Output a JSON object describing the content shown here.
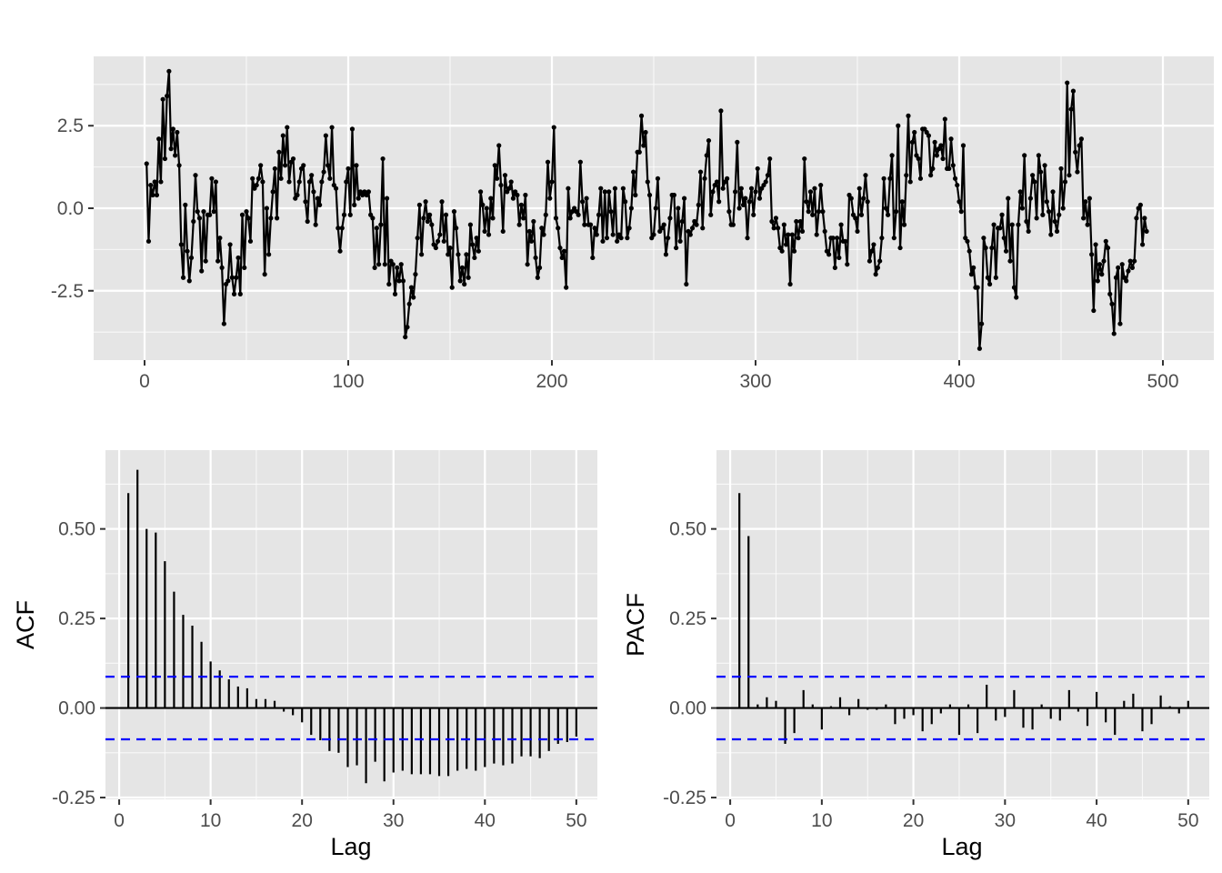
{
  "chart_data": [
    {
      "type": "line",
      "title": "",
      "xlabel": "",
      "ylabel": "",
      "xlim": [
        -25,
        525
      ],
      "ylim": [
        -4.6,
        4.6
      ],
      "xticks": [
        0,
        100,
        200,
        300,
        400,
        500
      ],
      "xtick_labels": [
        "0",
        "100",
        "200",
        "300",
        "400",
        "500"
      ],
      "yticks": [
        -2.5,
        0,
        2.5
      ],
      "ytick_labels": [
        "-2.5",
        "0.0",
        "2.5"
      ],
      "grid": true,
      "markers": true,
      "series": [
        {
          "x_start": 1,
          "x_step": 1,
          "values": [
            1.35,
            -1.0,
            0.7,
            0.4,
            0.8,
            0.4,
            2.1,
            0.8,
            3.3,
            1.5,
            3.4,
            4.15,
            1.8,
            2.4,
            1.6,
            2.3,
            1.3,
            -1.1,
            -2.1,
            0.1,
            -1.3,
            -2.2,
            -1.5,
            -0.4,
            1.0,
            -0.1,
            -0.3,
            -1.9,
            -0.1,
            -1.6,
            -0.2,
            -0.2,
            0.9,
            -0.1,
            0.8,
            -1.6,
            -0.9,
            -1.8,
            -3.5,
            -2.3,
            -2.2,
            -1.1,
            -2.1,
            -2.6,
            -2.1,
            -1.5,
            -2.6,
            -0.2,
            -1.8,
            -0.1,
            -0.3,
            -1.0,
            0.9,
            0.6,
            0.7,
            0.9,
            1.3,
            0.8,
            -2.0,
            0.0,
            -1.4,
            -0.3,
            0.5,
            1.2,
            -0.3,
            1.7,
            0.9,
            2.2,
            1.3,
            2.45,
            0.8,
            1.4,
            1.5,
            0.3,
            0.4,
            0.8,
            1.2,
            1.3,
            0.2,
            -0.4,
            0.8,
            1.0,
            0.5,
            -0.5,
            0.3,
            0.1,
            0.8,
            1.1,
            2.2,
            1.3,
            0.9,
            2.45,
            0.7,
            0.6,
            -0.6,
            -1.3,
            -0.6,
            -0.2,
            0.8,
            1.2,
            -0.2,
            2.4,
            0.1,
            1.3,
            0.3,
            0.5,
            0.4,
            0.5,
            0.4,
            0.5,
            -0.2,
            -0.3,
            -1.8,
            -0.6,
            -1.7,
            -0.5,
            1.5,
            -1.7,
            0.3,
            -2.3,
            -1.6,
            -1.7,
            -2.6,
            -1.8,
            -2.2,
            -1.7,
            -2.2,
            -3.9,
            -3.6,
            -2.9,
            -2.4,
            -2.7,
            -2.0,
            -0.9,
            0.1,
            -1.4,
            -0.3,
            0.2,
            -0.4,
            -0.2,
            -0.5,
            -1.1,
            -1.2,
            -1.0,
            -0.8,
            0.2,
            -1.0,
            -0.2,
            -1.4,
            -1.2,
            -2.4,
            -0.1,
            -0.6,
            -1.4,
            -2.2,
            -1.8,
            -2.3,
            -1.4,
            -2.1,
            -0.5,
            -1.1,
            -1.5,
            -0.9,
            -1.3,
            0.5,
            0.1,
            -0.7,
            0.0,
            -0.8,
            0.3,
            -0.3,
            1.3,
            0.9,
            1.9,
            0.7,
            -0.7,
            1.0,
            0.5,
            0.6,
            0.8,
            0.3,
            0.5,
            0.4,
            -0.5,
            0.1,
            -0.3,
            0.4,
            -1.7,
            -0.7,
            -1.0,
            -0.4,
            -1.5,
            -2.1,
            -1.8,
            -0.6,
            -0.8,
            -0.2,
            1.4,
            0.3,
            0.8,
            2.45,
            -0.3,
            -0.6,
            -1.2,
            -1.5,
            -1.3,
            -2.4,
            0.6,
            -0.3,
            -0.1,
            0.0,
            -0.1,
            -0.2,
            1.4,
            0.2,
            -0.5,
            0.3,
            -0.5,
            -0.5,
            -1.5,
            -0.6,
            -0.8,
            -0.2,
            0.6,
            -1.0,
            0.5,
            -0.9,
            0.5,
            -0.1,
            -0.8,
            0.6,
            -1.0,
            -0.8,
            -0.9,
            0.6,
            0.2,
            -0.9,
            -0.6,
            0.0,
            1.1,
            0.4,
            1.7,
            1.7,
            2.8,
            1.9,
            2.3,
            0.8,
            0.4,
            -0.9,
            -0.8,
            0.0,
            0.9,
            -0.7,
            -0.6,
            -0.5,
            -1.4,
            -0.9,
            -0.3,
            0.4,
            0.4,
            -1.2,
            0.0,
            -1.0,
            -0.4,
            0.3,
            -2.3,
            -0.7,
            -0.8,
            -0.6,
            -0.4,
            -0.5,
            0.1,
            1.1,
            -0.6,
            0.9,
            1.6,
            2.05,
            -0.2,
            0.5,
            0.7,
            0.8,
            0.2,
            2.95,
            0.6,
            0.8,
            0.9,
            -0.1,
            -0.5,
            -0.5,
            0.5,
            2.0,
            0.0,
            0.6,
            0.1,
            0.3,
            -0.9,
            0.2,
            0.6,
            -0.2,
            0.5,
            1.2,
            0.3,
            0.6,
            0.7,
            0.8,
            1.0,
            1.5,
            -0.4,
            -0.6,
            -0.3,
            -0.6,
            -1.2,
            -1.3,
            -0.5,
            -1.1,
            -0.8,
            -2.3,
            -0.8,
            -1.3,
            -0.4,
            -0.9,
            -0.4,
            -0.7,
            1.5,
            0.2,
            -0.1,
            0.5,
            -0.2,
            0.6,
            -0.8,
            -0.1,
            0.7,
            -0.1,
            -0.7,
            -1.3,
            -1.4,
            -0.9,
            -0.9,
            -1.8,
            -0.9,
            -1.5,
            -0.5,
            -1.0,
            -1.0,
            -1.7,
            0.4,
            0.3,
            -0.2,
            -0.3,
            -0.7,
            0.6,
            -0.2,
            0.3,
            1.0,
            0.2,
            -1.6,
            -1.3,
            -1.1,
            -2.0,
            -1.8,
            -1.6,
            -0.9,
            0.9,
            0.0,
            -0.2,
            0.9,
            1.6,
            -0.9,
            -0.1,
            2.5,
            -1.2,
            0.2,
            -0.5,
            1.0,
            2.8,
            0.8,
            2.0,
            2.3,
            1.6,
            1.5,
            0.9,
            2.4,
            2.4,
            2.3,
            2.2,
            1.0,
            1.2,
            2.0,
            1.6,
            1.8,
            1.9,
            1.5,
            2.7,
            1.2,
            1.2,
            2.1,
            1.3,
            0.9,
            0.7,
            0.2,
            -0.1,
            1.9,
            -0.9,
            -1.0,
            -1.3,
            -2.0,
            -1.8,
            -2.4,
            -2.4,
            -4.25,
            -3.5,
            -0.9,
            -1.2,
            -2.1,
            -2.3,
            -1.2,
            -0.5,
            -2.1,
            -0.6,
            -0.6,
            -0.2,
            -0.9,
            -1.3,
            0.3,
            -1.6,
            -0.5,
            -2.4,
            -2.7,
            -0.5,
            0.5,
            0.0,
            1.6,
            -0.4,
            -0.7,
            0.3,
            1.0,
            0.8,
            -0.3,
            1.6,
            1.1,
            -0.2,
            1.3,
            0.2,
            -0.1,
            -0.8,
            0.5,
            -0.4,
            -0.7,
            -0.2,
            1.2,
            0.0,
            0.8,
            3.8,
            1.0,
            3.0,
            3.55,
            1.7,
            1.1,
            1.9,
            2.1,
            -0.3,
            0.2,
            -0.5,
            0.3,
            -1.4,
            -3.1,
            -1.1,
            -2.2,
            -1.7,
            -2.0,
            -1.6,
            -1.0,
            -1.2,
            -2.6,
            -2.9,
            -3.8,
            -2.1,
            -1.8,
            -3.5,
            -1.7,
            -2.1,
            -2.2,
            -1.9,
            -1.6,
            -1.8,
            -1.6,
            -0.3,
            0.0,
            0.1,
            -1.1,
            -0.3,
            -0.7
          ]
        }
      ]
    },
    {
      "type": "bar",
      "title": "",
      "xlabel": "Lag",
      "ylabel": "ACF",
      "xlim": [
        -1.5,
        52.3
      ],
      "ylim": [
        -0.255,
        0.72
      ],
      "xticks": [
        0,
        10,
        20,
        30,
        40,
        50
      ],
      "xtick_labels": [
        "0",
        "10",
        "20",
        "30",
        "40",
        "50"
      ],
      "yticks": [
        -0.25,
        0,
        0.25,
        0.5
      ],
      "ytick_labels": [
        "-0.25",
        "0.00",
        "0.25",
        "0.50"
      ],
      "grid": true,
      "ci": 0.0875,
      "series": [
        {
          "x_start": 1,
          "x_step": 1,
          "values": [
            0.6,
            0.665,
            0.5,
            0.49,
            0.41,
            0.325,
            0.26,
            0.23,
            0.185,
            0.13,
            0.105,
            0.08,
            0.06,
            0.055,
            0.025,
            0.025,
            0.02,
            -0.01,
            -0.02,
            -0.04,
            -0.075,
            -0.09,
            -0.12,
            -0.125,
            -0.165,
            -0.16,
            -0.21,
            -0.15,
            -0.205,
            -0.18,
            -0.175,
            -0.185,
            -0.185,
            -0.185,
            -0.19,
            -0.19,
            -0.175,
            -0.17,
            -0.175,
            -0.165,
            -0.155,
            -0.16,
            -0.155,
            -0.135,
            -0.135,
            -0.14,
            -0.12,
            -0.1,
            -0.095,
            -0.08
          ]
        }
      ]
    },
    {
      "type": "bar",
      "title": "",
      "xlabel": "Lag",
      "ylabel": "PACF",
      "xlim": [
        -1.5,
        52.3
      ],
      "ylim": [
        -0.255,
        0.72
      ],
      "xticks": [
        0,
        10,
        20,
        30,
        40,
        50
      ],
      "xtick_labels": [
        "0",
        "10",
        "20",
        "30",
        "40",
        "50"
      ],
      "yticks": [
        -0.25,
        0,
        0.25,
        0.5
      ],
      "ytick_labels": [
        "-0.25",
        "0.00",
        "0.25",
        "0.50"
      ],
      "grid": true,
      "ci": 0.0875,
      "series": [
        {
          "x_start": 1,
          "x_step": 1,
          "values": [
            0.6,
            0.48,
            0.01,
            0.03,
            0.02,
            -0.1,
            -0.07,
            0.05,
            0.01,
            -0.06,
            0.005,
            0.03,
            -0.02,
            0.025,
            -0.005,
            -0.005,
            0.01,
            -0.045,
            -0.03,
            -0.02,
            -0.065,
            -0.045,
            -0.015,
            0.01,
            -0.075,
            0.01,
            -0.07,
            0.065,
            -0.035,
            -0.025,
            0.05,
            -0.055,
            -0.06,
            0.01,
            -0.03,
            -0.035,
            0.05,
            -0.01,
            -0.05,
            0.045,
            -0.04,
            -0.075,
            0.02,
            0.04,
            -0.065,
            -0.045,
            0.035,
            0.005,
            -0.015,
            0.02
          ]
        }
      ]
    }
  ]
}
